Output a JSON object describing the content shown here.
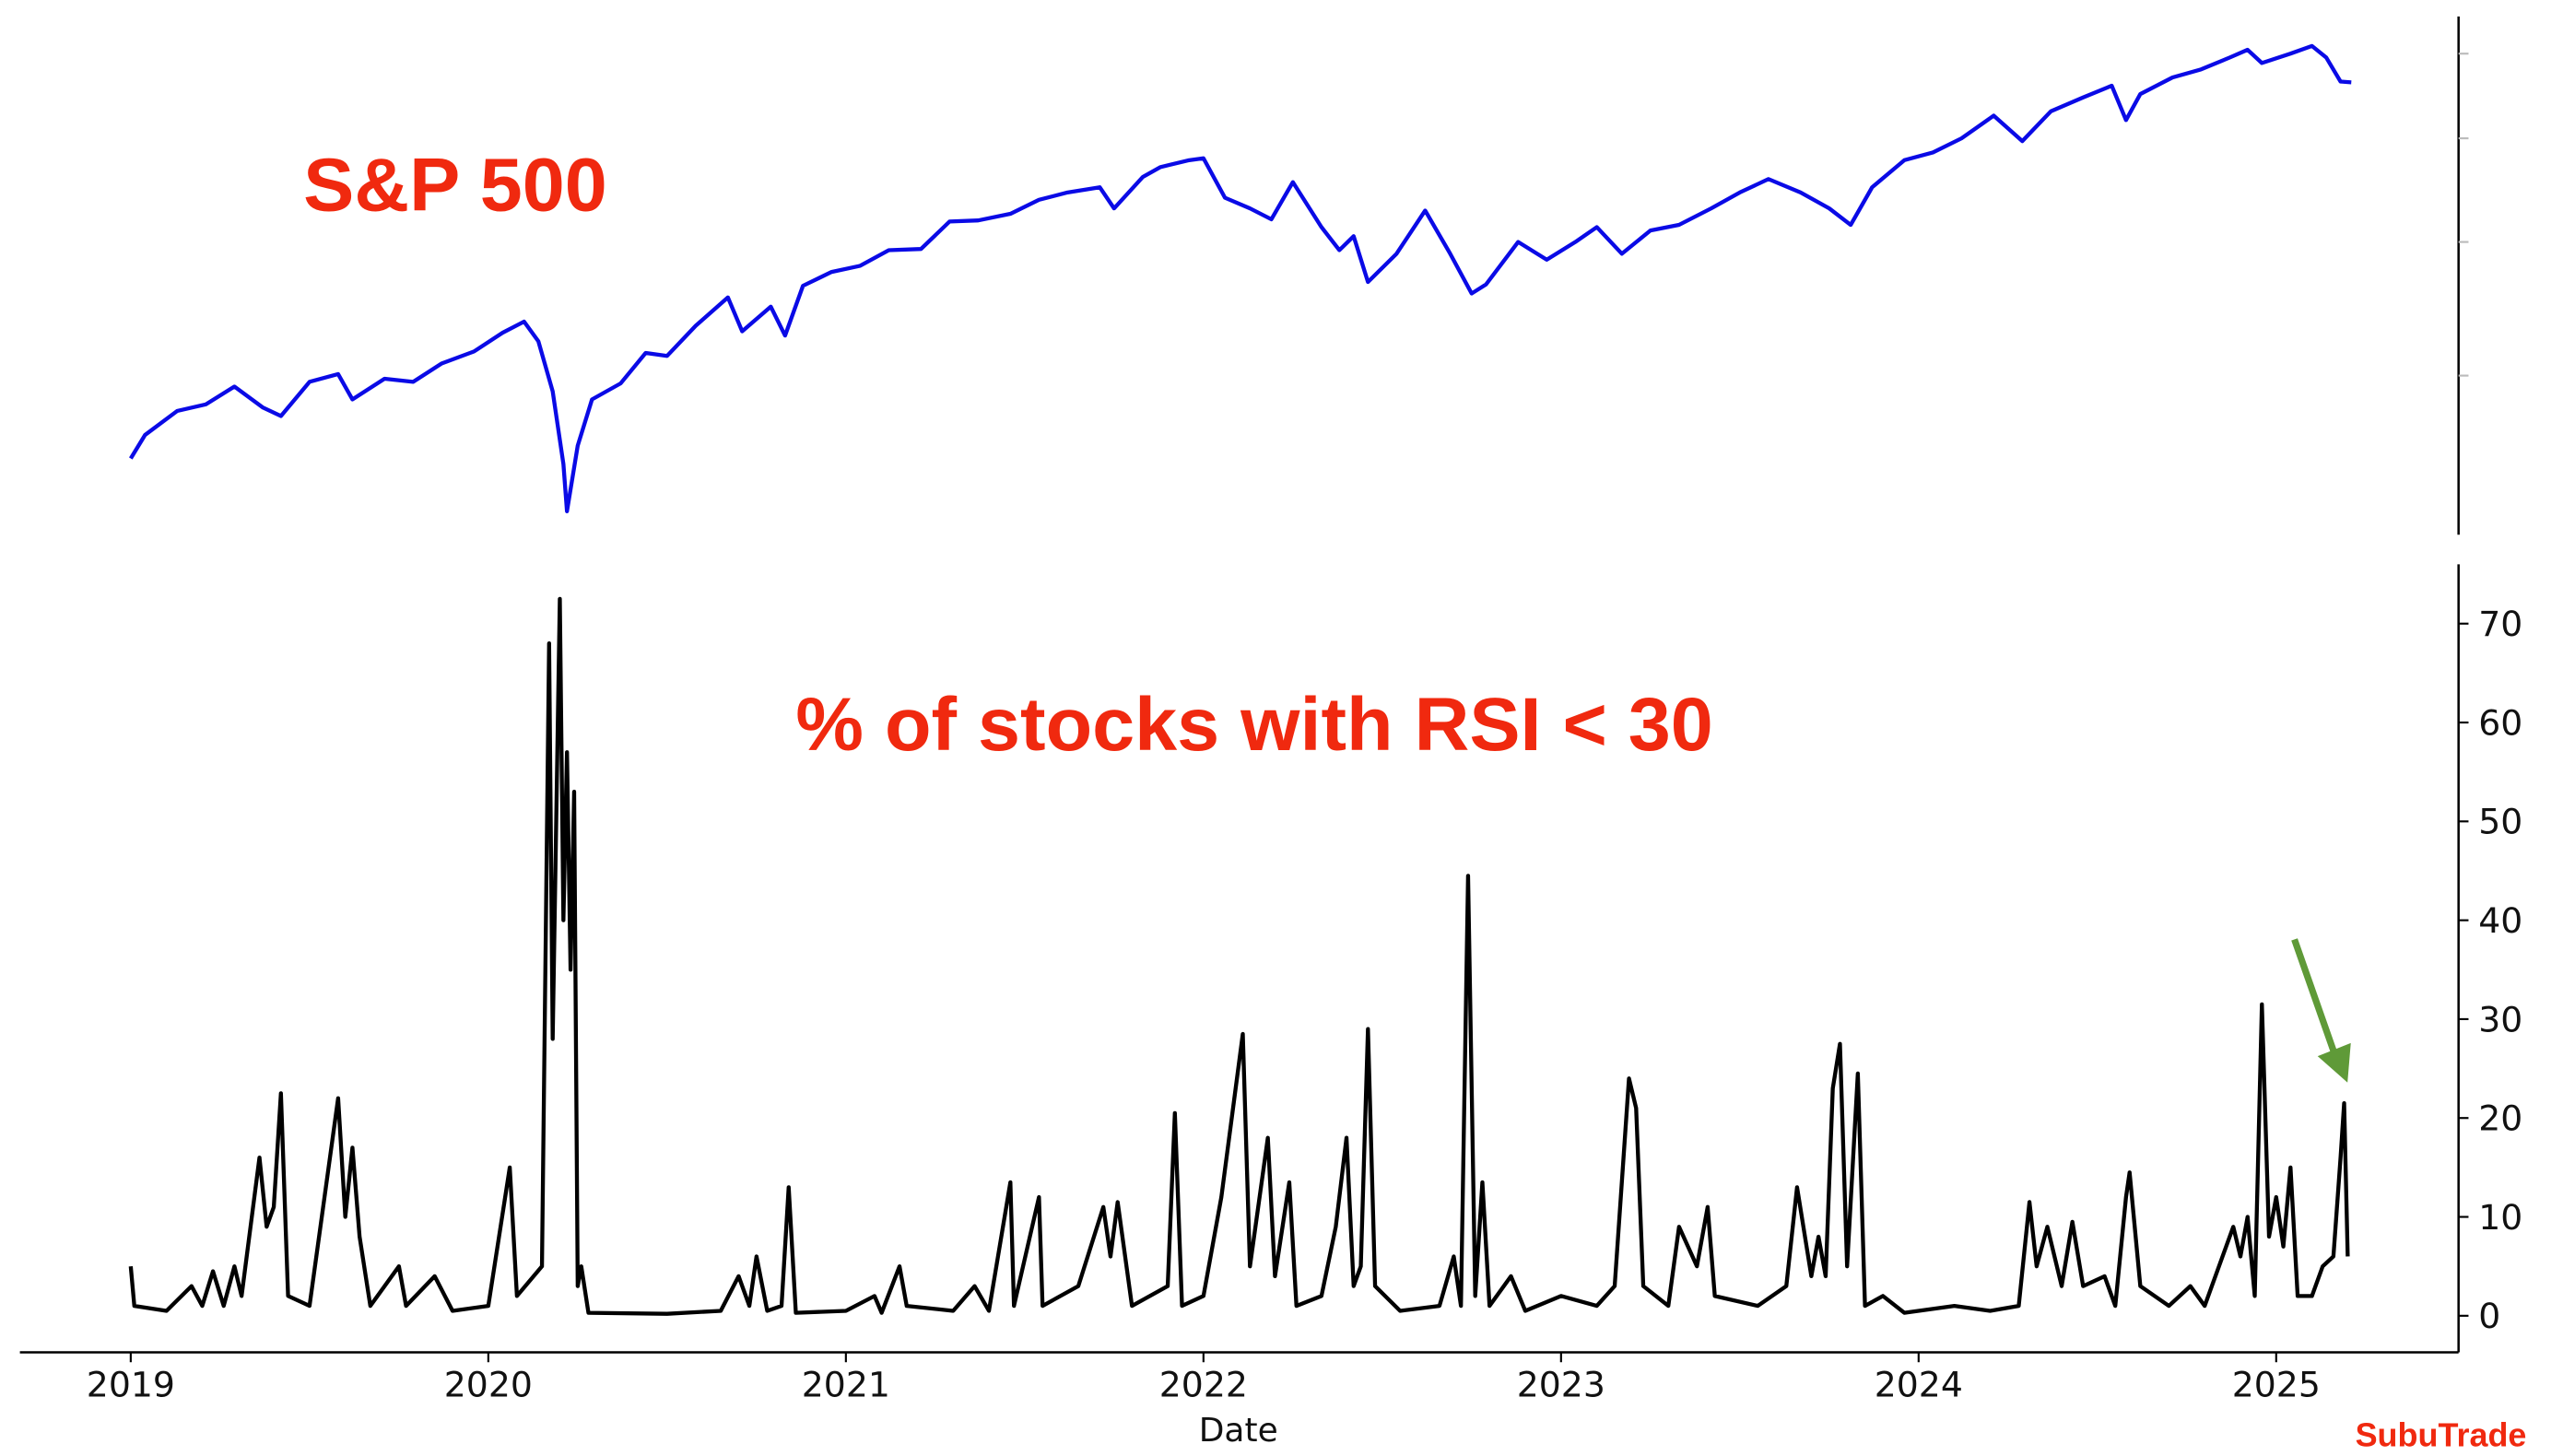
{
  "chart_data": [
    {
      "type": "line",
      "title": "S&P 500",
      "color": "#0a0ae6",
      "yscale": "log",
      "xlim": [
        2018.69,
        2025.51
      ],
      "ylim": [
        2130,
        6500
      ],
      "yticks": [
        3000,
        4000,
        5000,
        6000
      ],
      "x": [
        2019.0,
        2019.04,
        2019.13,
        2019.21,
        2019.29,
        2019.37,
        2019.42,
        2019.5,
        2019.58,
        2019.62,
        2019.71,
        2019.79,
        2019.87,
        2019.96,
        2020.04,
        2020.1,
        2020.14,
        2020.18,
        2020.21,
        2020.22,
        2020.25,
        2020.29,
        2020.37,
        2020.44,
        2020.5,
        2020.58,
        2020.67,
        2020.71,
        2020.79,
        2020.83,
        2020.88,
        2020.96,
        2021.04,
        2021.12,
        2021.21,
        2021.29,
        2021.37,
        2021.46,
        2021.54,
        2021.62,
        2021.71,
        2021.75,
        2021.83,
        2021.88,
        2021.96,
        2022.0,
        2022.06,
        2022.13,
        2022.19,
        2022.25,
        2022.33,
        2022.38,
        2022.42,
        2022.46,
        2022.54,
        2022.62,
        2022.69,
        2022.75,
        2022.79,
        2022.88,
        2022.96,
        2023.04,
        2023.1,
        2023.17,
        2023.25,
        2023.33,
        2023.42,
        2023.5,
        2023.58,
        2023.67,
        2023.75,
        2023.81,
        2023.87,
        2023.96,
        2024.04,
        2024.12,
        2024.21,
        2024.29,
        2024.37,
        2024.46,
        2024.54,
        2024.58,
        2024.62,
        2024.71,
        2024.79,
        2024.87,
        2024.92,
        2024.96,
        2025.04,
        2025.1,
        2025.14,
        2025.18,
        2025.21
      ],
      "values": [
        2510,
        2640,
        2780,
        2820,
        2930,
        2800,
        2750,
        2960,
        3010,
        2850,
        2980,
        2960,
        3080,
        3160,
        3290,
        3370,
        3230,
        2900,
        2480,
        2240,
        2580,
        2850,
        2950,
        3150,
        3130,
        3340,
        3550,
        3300,
        3480,
        3270,
        3640,
        3750,
        3800,
        3930,
        3940,
        4180,
        4190,
        4250,
        4380,
        4450,
        4500,
        4300,
        4600,
        4700,
        4770,
        4790,
        4400,
        4300,
        4200,
        4550,
        4130,
        3930,
        4050,
        3670,
        3900,
        4280,
        3900,
        3580,
        3650,
        4000,
        3850,
        4000,
        4130,
        3900,
        4100,
        4150,
        4300,
        4450,
        4580,
        4450,
        4300,
        4150,
        4500,
        4770,
        4850,
        5000,
        5250,
        4970,
        5300,
        5460,
        5600,
        5200,
        5500,
        5700,
        5800,
        5950,
        6050,
        5880,
        6000,
        6100,
        5950,
        5650,
        5640
      ]
    },
    {
      "type": "line",
      "title": "% of stocks with RSI < 30",
      "color": "#000000",
      "x_label": "Date",
      "source": "SubuTrade",
      "xlim": [
        2018.69,
        2025.51
      ],
      "xticks": [
        2019,
        2020,
        2021,
        2022,
        2023,
        2024,
        2025
      ],
      "ylim": [
        -3.7,
        76
      ],
      "yticks": [
        0,
        10,
        20,
        30,
        40,
        50,
        60,
        70
      ],
      "x": [
        2019.0,
        2019.01,
        2019.1,
        2019.17,
        2019.2,
        2019.23,
        2019.26,
        2019.29,
        2019.31,
        2019.36,
        2019.38,
        2019.4,
        2019.42,
        2019.44,
        2019.5,
        2019.58,
        2019.6,
        2019.62,
        2019.64,
        2019.67,
        2019.75,
        2019.77,
        2019.85,
        2019.9,
        2020.0,
        2020.06,
        2020.08,
        2020.15,
        2020.17,
        2020.18,
        2020.2,
        2020.21,
        2020.22,
        2020.23,
        2020.24,
        2020.25,
        2020.26,
        2020.28,
        2020.5,
        2020.65,
        2020.7,
        2020.73,
        2020.75,
        2020.78,
        2020.82,
        2020.84,
        2020.86,
        2021.0,
        2021.08,
        2021.1,
        2021.15,
        2021.17,
        2021.3,
        2021.36,
        2021.4,
        2021.46,
        2021.47,
        2021.54,
        2021.55,
        2021.65,
        2021.72,
        2021.74,
        2021.76,
        2021.8,
        2021.9,
        2021.92,
        2021.94,
        2022.0,
        2022.05,
        2022.09,
        2022.11,
        2022.13,
        2022.18,
        2022.2,
        2022.24,
        2022.26,
        2022.33,
        2022.37,
        2022.4,
        2022.42,
        2022.44,
        2022.46,
        2022.48,
        2022.55,
        2022.66,
        2022.7,
        2022.72,
        2022.74,
        2022.76,
        2022.78,
        2022.8,
        2022.86,
        2022.9,
        2023.0,
        2023.1,
        2023.15,
        2023.19,
        2023.21,
        2023.23,
        2023.3,
        2023.33,
        2023.38,
        2023.41,
        2023.43,
        2023.55,
        2023.63,
        2023.66,
        2023.7,
        2023.72,
        2023.74,
        2023.76,
        2023.78,
        2023.8,
        2023.83,
        2023.85,
        2023.9,
        2023.96,
        2024.1,
        2024.2,
        2024.28,
        2024.31,
        2024.33,
        2024.36,
        2024.4,
        2024.43,
        2024.46,
        2024.52,
        2024.55,
        2024.58,
        2024.59,
        2024.62,
        2024.7,
        2024.76,
        2024.8,
        2024.88,
        2024.9,
        2024.92,
        2024.94,
        2024.96,
        2024.98,
        2025.0,
        2025.02,
        2025.04,
        2025.06,
        2025.1,
        2025.13,
        2025.16,
        2025.18,
        2025.19,
        2025.2
      ],
      "values": [
        5,
        1,
        0.5,
        3,
        1,
        4.5,
        1,
        5,
        2,
        16,
        9,
        11,
        22.5,
        2,
        1,
        22,
        10,
        17,
        8,
        1,
        5,
        1,
        4,
        0.5,
        1,
        15,
        2,
        5,
        68,
        28,
        72.5,
        40,
        57,
        35,
        53,
        3,
        5,
        0.3,
        0.2,
        0.5,
        4,
        1,
        6,
        0.5,
        1,
        13,
        0.3,
        0.5,
        2,
        0.3,
        5,
        1,
        0.5,
        3,
        0.5,
        13.5,
        1,
        12,
        1,
        3,
        11,
        6,
        11.5,
        1,
        3,
        20.5,
        1,
        2,
        12,
        23,
        28.5,
        5,
        18,
        4,
        13.5,
        1,
        2,
        9,
        18,
        3,
        5,
        29,
        3,
        0.5,
        1,
        6,
        1,
        44.5,
        2,
        13.5,
        1,
        4,
        0.5,
        2,
        1,
        3,
        24,
        21,
        3,
        1,
        9,
        5,
        11,
        2,
        1,
        3,
        13,
        4,
        8,
        4,
        23,
        27.5,
        5,
        24.5,
        1,
        2,
        0.3,
        1,
        0.5,
        1,
        11.5,
        5,
        9,
        3,
        9.5,
        3,
        4,
        1,
        12,
        14.5,
        3,
        1,
        3,
        1,
        9,
        6,
        10,
        2,
        31.5,
        8,
        12,
        7,
        15,
        2,
        2,
        5,
        6,
        16,
        21.5,
        6
      ]
    }
  ]
}
